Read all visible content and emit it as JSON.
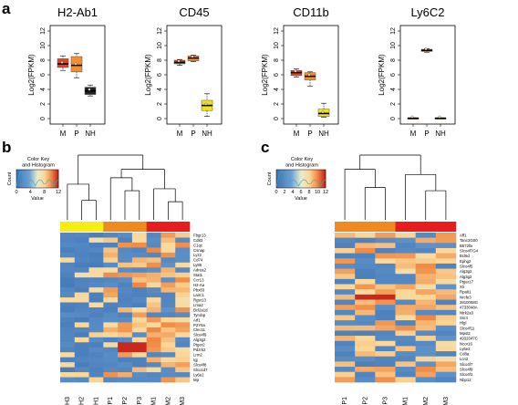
{
  "panel_labels": {
    "a": "a",
    "b": "b",
    "c": "c"
  },
  "chart_data": [
    {
      "type": "box",
      "title": "H2-Ab1",
      "ylabel": "Log2(FPKM)",
      "ylim": [
        0,
        12
      ],
      "yticks": [
        0,
        2,
        4,
        6,
        8,
        10,
        12
      ],
      "categories": [
        "M",
        "P",
        "NH"
      ],
      "boxes": [
        {
          "min": 6.6,
          "q1": 7.0,
          "median": 7.5,
          "q3": 8.2,
          "max": 8.6,
          "color": "#e8421c"
        },
        {
          "min": 5.6,
          "q1": 6.4,
          "median": 7.3,
          "q3": 8.5,
          "max": 8.9,
          "color": "#f09030"
        },
        {
          "min": 3.1,
          "q1": 3.3,
          "median": 3.8,
          "q3": 4.3,
          "max": 4.6,
          "color": "#222222"
        }
      ]
    },
    {
      "type": "box",
      "title": "CD45",
      "ylabel": "Log2(FPKM)",
      "ylim": [
        0,
        12
      ],
      "yticks": [
        0,
        2,
        4,
        6,
        8,
        10,
        12
      ],
      "categories": [
        "M",
        "P",
        "NH"
      ],
      "boxes": [
        {
          "min": 7.3,
          "q1": 7.5,
          "median": 7.7,
          "q3": 8.0,
          "max": 8.1,
          "color": "#e8421c"
        },
        {
          "min": 7.8,
          "q1": 7.9,
          "median": 8.3,
          "q3": 8.6,
          "max": 8.7,
          "color": "#f09030"
        },
        {
          "min": 0.3,
          "q1": 1.1,
          "median": 1.8,
          "q3": 2.5,
          "max": 3.4,
          "color": "#f0e020"
        }
      ]
    },
    {
      "type": "box",
      "title": "CD11b",
      "ylabel": "Log2(FPKM)",
      "ylim": [
        0,
        12
      ],
      "yticks": [
        0,
        2,
        4,
        6,
        8,
        10,
        12
      ],
      "categories": [
        "M",
        "P",
        "NH"
      ],
      "boxes": [
        {
          "min": 5.7,
          "q1": 5.9,
          "median": 6.3,
          "q3": 6.6,
          "max": 6.8,
          "color": "#e8421c"
        },
        {
          "min": 4.4,
          "q1": 5.3,
          "median": 5.8,
          "q3": 6.3,
          "max": 6.4,
          "color": "#f09030"
        },
        {
          "min": 0.2,
          "q1": 0.3,
          "median": 0.7,
          "q3": 1.3,
          "max": 2.1,
          "color": "#f0e020"
        }
      ]
    },
    {
      "type": "box",
      "title": "Ly6C2",
      "ylabel": "Log2(FPKM)",
      "ylim": [
        0,
        12
      ],
      "yticks": [
        0,
        2,
        4,
        6,
        8,
        10,
        12
      ],
      "categories": [
        "M",
        "P",
        "NH"
      ],
      "boxes": [
        {
          "min": 0,
          "q1": 0,
          "median": 0.05,
          "q3": 0.1,
          "max": 0.1,
          "color": "#e8421c"
        },
        {
          "min": 9.1,
          "q1": 9.2,
          "median": 9.35,
          "q3": 9.5,
          "max": 9.6,
          "color": "#f09030"
        },
        {
          "min": 0,
          "q1": 0,
          "median": 0.05,
          "q3": 0.1,
          "max": 0.1,
          "color": "#f0e020"
        }
      ]
    },
    {
      "type": "heatmap",
      "panel": "b",
      "key_title": "Color Key\nand Histogram",
      "key_ticks": [
        "0",
        "4",
        "8",
        "12"
      ],
      "key_xlabel": "Value",
      "key_ylabel": "Count",
      "columns": [
        "NH3",
        "NH2",
        "NH1",
        "P1",
        "P2",
        "P3",
        "M1",
        "M2",
        "M3"
      ],
      "groups": [
        "#f5ee10",
        "#f5ee10",
        "#f5ee10",
        "#f08a1e",
        "#f08a1e",
        "#f08a1e",
        "#e81c1c",
        "#e81c1c",
        "#e81c1c"
      ],
      "rows": [
        "Fbgr13",
        "Cd83",
        "C1qc",
        "Csnap",
        "Lyz2",
        "Cd74",
        "Ly86",
        "Adrea2",
        "Stat1",
        "Ccr13",
        "H2-Aa",
        "Pbx83",
        "Lairc1",
        "Rgsr13",
        "Lma2",
        "Bcl2a1d",
        "Tyrobp",
        "Atf1",
        "P2Y6a",
        "Clec11",
        "Slco4f9",
        "Alg3g2",
        "Ptger2",
        "Pdzrk2",
        "Lrm2",
        "Igj",
        "Slco4f8",
        "Slco1d7",
        "Ly6e2",
        "Mp"
      ]
    },
    {
      "type": "heatmap",
      "panel": "c",
      "key_title": "Color Key\nand Histogram",
      "key_ticks": [
        "0",
        "2",
        "4",
        "6",
        "8",
        "10",
        "12"
      ],
      "key_xlabel": "Value",
      "key_ylabel": "Count",
      "columns": [
        "P1",
        "P2",
        "P3",
        "M1",
        "M2",
        "M3"
      ],
      "groups": [
        "#f08a1e",
        "#f08a1e",
        "#f08a1e",
        "#e81c1c",
        "#e81c1c",
        "#e81c1c"
      ],
      "rows": [
        "Aff1",
        "Tanc2G00",
        "B572ltx",
        "Slco4f7G4",
        "Bcl6d",
        "Ephg2",
        "Slco4f5",
        "Alg3g2",
        "Alg3g2",
        "Ptger17",
        "Xlr",
        "Rpa81",
        "Nrcfe3",
        "2810058G",
        "4733048A",
        "Ntrk2a3",
        "Ssr4",
        "Hlgl",
        "Slco4f11",
        "Mpst2",
        "4932047C",
        "Ncor16",
        "Ly6e2",
        "Cd8a",
        "Lcn2",
        "Slco4f7",
        "Slco4f9",
        "Slco4f1",
        "Nbp12"
      ]
    }
  ]
}
